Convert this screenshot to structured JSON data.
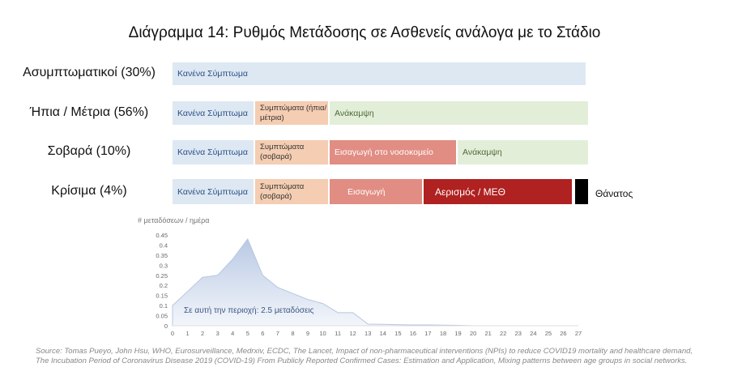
{
  "title": "Διάγραμμα 14: Ρυθμός Μετάδοσης σε Ασθενείς ανάλογα με το Στάδιο",
  "rows": [
    {
      "label": "Ασυμπτωματικοί (30%)",
      "segments": [
        "Κανένα Σύμπτωμα"
      ]
    },
    {
      "label": "Ήπια / Μέτρια (56%)",
      "segments": [
        "Κανένα Σύμπτωμα",
        "Συμπτώματα (ήπια/μέτρια)",
        "Ανάκαμψη"
      ]
    },
    {
      "label": "Σοβαρά (10%)",
      "segments": [
        "Κανένα Σύμπτωμα",
        "Συμπτώματα (σοβαρά)",
        "Εισαγωγή στο νοσοκομείο",
        "Ανάκαμψη"
      ]
    },
    {
      "label": "Κρίσιμα (4%)",
      "segments": [
        "Κανένα Σύμπτωμα",
        "Συμπτώματα (σοβαρά)",
        "Εισαγωγή",
        "Αερισμός / ΜΕΘ"
      ],
      "end_label": "Θάνατος"
    }
  ],
  "colors": {
    "no_symptoms": "#dde8f3",
    "symptoms": "#f4cdb2",
    "recovery": "#e3eed9",
    "hospital": "#e18d83",
    "icu": "#b02121",
    "death": "#000000",
    "area": "#c5d3ea"
  },
  "chart_data": {
    "type": "area",
    "ylabel": "# μεταδόσεων / ημέρα",
    "x": [
      0,
      1,
      2,
      3,
      4,
      5,
      6,
      7,
      8,
      9,
      10,
      11,
      12,
      13,
      14,
      15,
      16,
      17,
      18,
      19,
      20,
      21,
      22,
      23,
      24,
      25,
      26,
      27
    ],
    "values": [
      0.1,
      0.17,
      0.24,
      0.25,
      0.33,
      0.43,
      0.25,
      0.19,
      0.16,
      0.13,
      0.11,
      0.065,
      0.065,
      0.008,
      0.007,
      0.005,
      0.004,
      0.004,
      0.003,
      0.002,
      0,
      0,
      0,
      0,
      0,
      0,
      0,
      0
    ],
    "yticks": [
      "0",
      "0.05",
      "0.1",
      "0.15",
      "0.2",
      "0.25",
      "0.3",
      "0.35",
      "0.4",
      "0.45"
    ],
    "ylim": [
      0,
      0.45
    ],
    "annotation": "Σε αυτή την περιοχή: 2.5 μεταδόσεις"
  },
  "source": "Source: Tomas Pueyo, John Hsu, WHO, Eurosurveillance, Medrxiv, ECDC, The Lancet, Impact of non-pharmaceutical interventions (NPIs) to reduce COVID19 mortality and healthcare demand, The Incubation Period of Coronavirus Disease 2019 (COVID-19) From Publicly Reported Confirmed Cases: Estimation and Application, Mixing patterns between age groups in social networks."
}
